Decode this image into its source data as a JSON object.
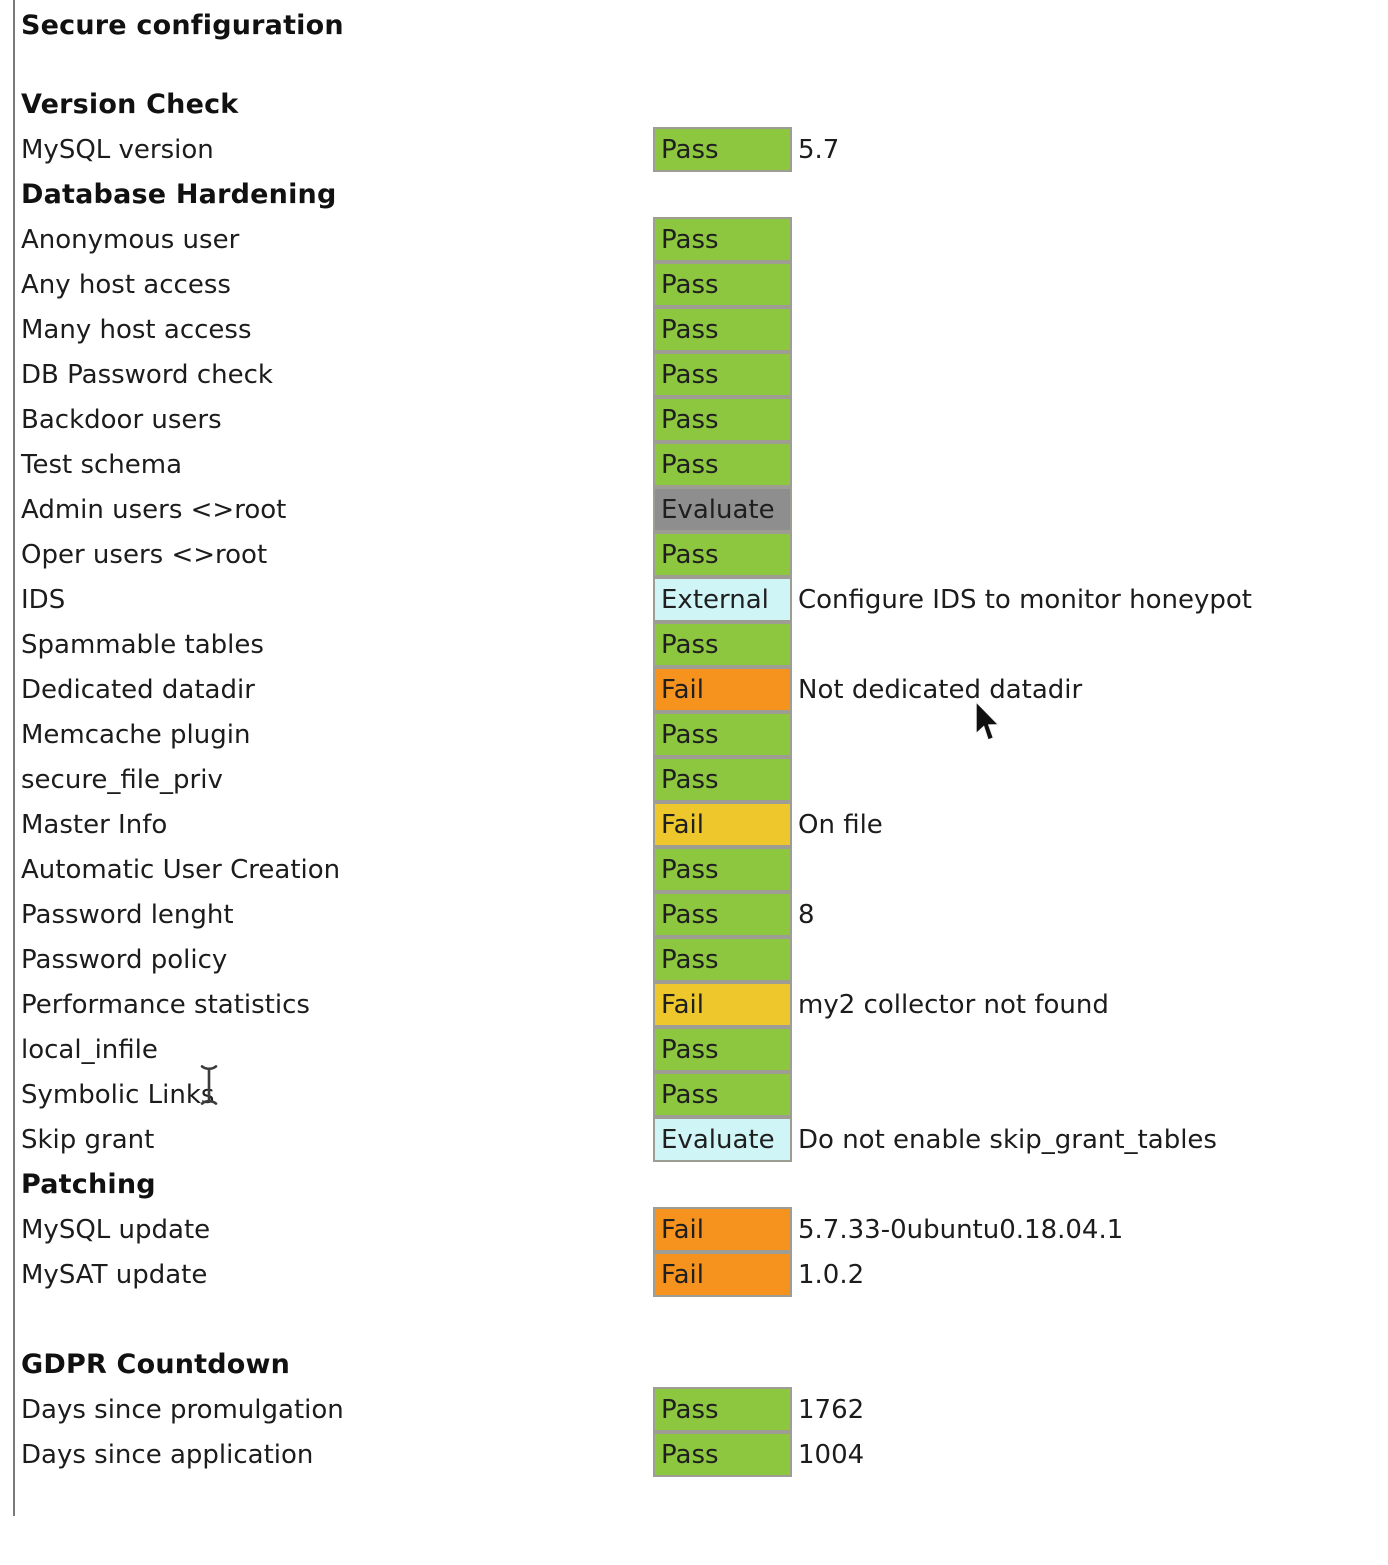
{
  "page": {
    "title": "Secure configuration",
    "status_colors": {
      "pass": "#8dc63f",
      "fail-orange": "#f6921e",
      "fail-warn": "#edc72c",
      "evaluate": "#8e8e8e",
      "external": "#cff5f7",
      "evaluate-info": "#cff5f7"
    },
    "icons": {
      "pointer": "mouse-arrow-cursor",
      "text": "i-beam-cursor"
    },
    "sections": [
      {
        "heading": "Version Check",
        "rows": [
          {
            "label": "MySQL version",
            "status": "Pass",
            "variant": "pass",
            "note": "5.7"
          }
        ]
      },
      {
        "heading": "Database Hardening",
        "rows": [
          {
            "label": "Anonymous user",
            "status": "Pass",
            "variant": "pass",
            "note": ""
          },
          {
            "label": "Any host access",
            "status": "Pass",
            "variant": "pass",
            "note": ""
          },
          {
            "label": "Many host access",
            "status": "Pass",
            "variant": "pass",
            "note": ""
          },
          {
            "label": "DB Password check",
            "status": "Pass",
            "variant": "pass",
            "note": ""
          },
          {
            "label": "Backdoor users",
            "status": "Pass",
            "variant": "pass",
            "note": ""
          },
          {
            "label": "Test schema",
            "status": "Pass",
            "variant": "pass",
            "note": ""
          },
          {
            "label": "Admin users <>root",
            "status": "Evaluate",
            "variant": "evaluate",
            "note": ""
          },
          {
            "label": "Oper users <>root",
            "status": "Pass",
            "variant": "pass",
            "note": ""
          },
          {
            "label": "IDS",
            "status": "External",
            "variant": "external",
            "note": "Configure IDS to monitor honeypot"
          },
          {
            "label": "Spammable tables",
            "status": "Pass",
            "variant": "pass",
            "note": ""
          },
          {
            "label": "Dedicated datadir",
            "status": "Fail",
            "variant": "fail-orange",
            "note": "Not dedicated datadir"
          },
          {
            "label": "Memcache plugin",
            "status": "Pass",
            "variant": "pass",
            "note": ""
          },
          {
            "label": "secure_file_priv",
            "status": "Pass",
            "variant": "pass",
            "note": ""
          },
          {
            "label": "Master Info",
            "status": "Fail",
            "variant": "fail-warn",
            "note": "On file"
          },
          {
            "label": "Automatic User Creation",
            "status": "Pass",
            "variant": "pass",
            "note": ""
          },
          {
            "label": "Password lenght",
            "status": "Pass",
            "variant": "pass",
            "note": "8"
          },
          {
            "label": "Password policy",
            "status": "Pass",
            "variant": "pass",
            "note": ""
          },
          {
            "label": "Performance statistics",
            "status": "Fail",
            "variant": "fail-warn",
            "note": "my2 collector not found"
          },
          {
            "label": "local_infile",
            "status": "Pass",
            "variant": "pass",
            "note": ""
          },
          {
            "label": "Symbolic Links",
            "status": "Pass",
            "variant": "pass",
            "note": ""
          },
          {
            "label": "Skip grant",
            "status": "Evaluate",
            "variant": "evaluate-info",
            "note": "Do not enable skip_grant_tables"
          }
        ]
      },
      {
        "heading": "Patching",
        "rows": [
          {
            "label": "MySQL update",
            "status": "Fail",
            "variant": "fail-orange",
            "note": "5.7.33-0ubuntu0.18.04.1"
          },
          {
            "label": "MySAT update",
            "status": "Fail",
            "variant": "fail-orange",
            "note": "1.0.2"
          }
        ]
      },
      {
        "heading": "GDPR Countdown",
        "gap_before": true,
        "rows": [
          {
            "label": "Days since promulgation",
            "status": "Pass",
            "variant": "pass",
            "note": "1762"
          },
          {
            "label": "Days since application",
            "status": "Pass",
            "variant": "pass",
            "note": "1004"
          }
        ]
      }
    ]
  }
}
